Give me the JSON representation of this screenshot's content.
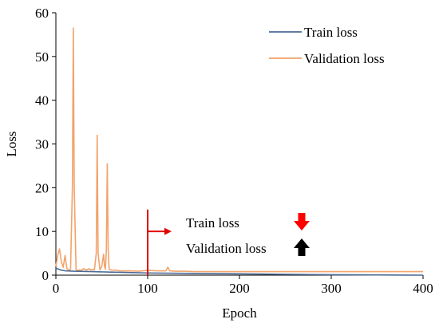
{
  "chart_data": {
    "type": "line",
    "xlabel": "Epoch",
    "ylabel": "Loss",
    "xlim": [
      0,
      400
    ],
    "ylim": [
      0,
      60
    ],
    "xticks": [
      0,
      100,
      200,
      300,
      400
    ],
    "yticks": [
      0,
      10,
      20,
      30,
      40,
      50,
      60
    ],
    "grid": false,
    "legend_position": "top-right",
    "series": [
      {
        "name": "Train loss",
        "color": "#4a6a96",
        "x": [
          0,
          5,
          10,
          20,
          40,
          60,
          80,
          100,
          150,
          200,
          250,
          300,
          350,
          400
        ],
        "y": [
          1.6,
          1.2,
          1.0,
          0.9,
          0.8,
          0.7,
          0.6,
          0.5,
          0.4,
          0.3,
          0.2,
          0.1,
          0.05,
          0.0
        ]
      },
      {
        "name": "Validation loss",
        "color": "#f2a36b",
        "x": [
          0,
          2,
          4,
          6,
          8,
          10,
          12,
          14,
          16,
          18,
          19,
          20,
          22,
          24,
          26,
          28,
          30,
          32,
          34,
          36,
          38,
          40,
          42,
          44,
          45,
          46,
          48,
          50,
          52,
          53,
          54,
          55,
          56,
          57,
          58,
          60,
          62,
          64,
          66,
          70,
          80,
          90,
          100,
          110,
          120,
          122,
          124,
          130,
          140,
          150,
          175,
          200,
          250,
          300,
          350,
          400
        ],
        "y": [
          2.0,
          4.5,
          6.0,
          3.0,
          1.8,
          4.5,
          1.5,
          1.2,
          1.3,
          20.0,
          56.5,
          20.0,
          1.2,
          1.1,
          1.2,
          1.1,
          1.5,
          1.3,
          1.2,
          1.5,
          1.2,
          1.3,
          1.2,
          5.0,
          32.0,
          5.0,
          1.2,
          2.0,
          4.8,
          2.0,
          1.4,
          6.0,
          25.5,
          6.0,
          1.3,
          1.2,
          1.1,
          1.2,
          1.1,
          1.0,
          1.0,
          0.9,
          1.1,
          1.0,
          1.0,
          1.8,
          1.0,
          0.9,
          0.9,
          0.8,
          0.8,
          0.8,
          0.8,
          0.8,
          0.8,
          0.8
        ]
      }
    ],
    "annotation": {
      "x": 100,
      "y_top": 15,
      "rows": [
        {
          "label": "Train loss",
          "direction": "down",
          "color": "#ff0000"
        },
        {
          "label": "Validation loss",
          "direction": "up",
          "color": "#000000"
        }
      ]
    }
  }
}
